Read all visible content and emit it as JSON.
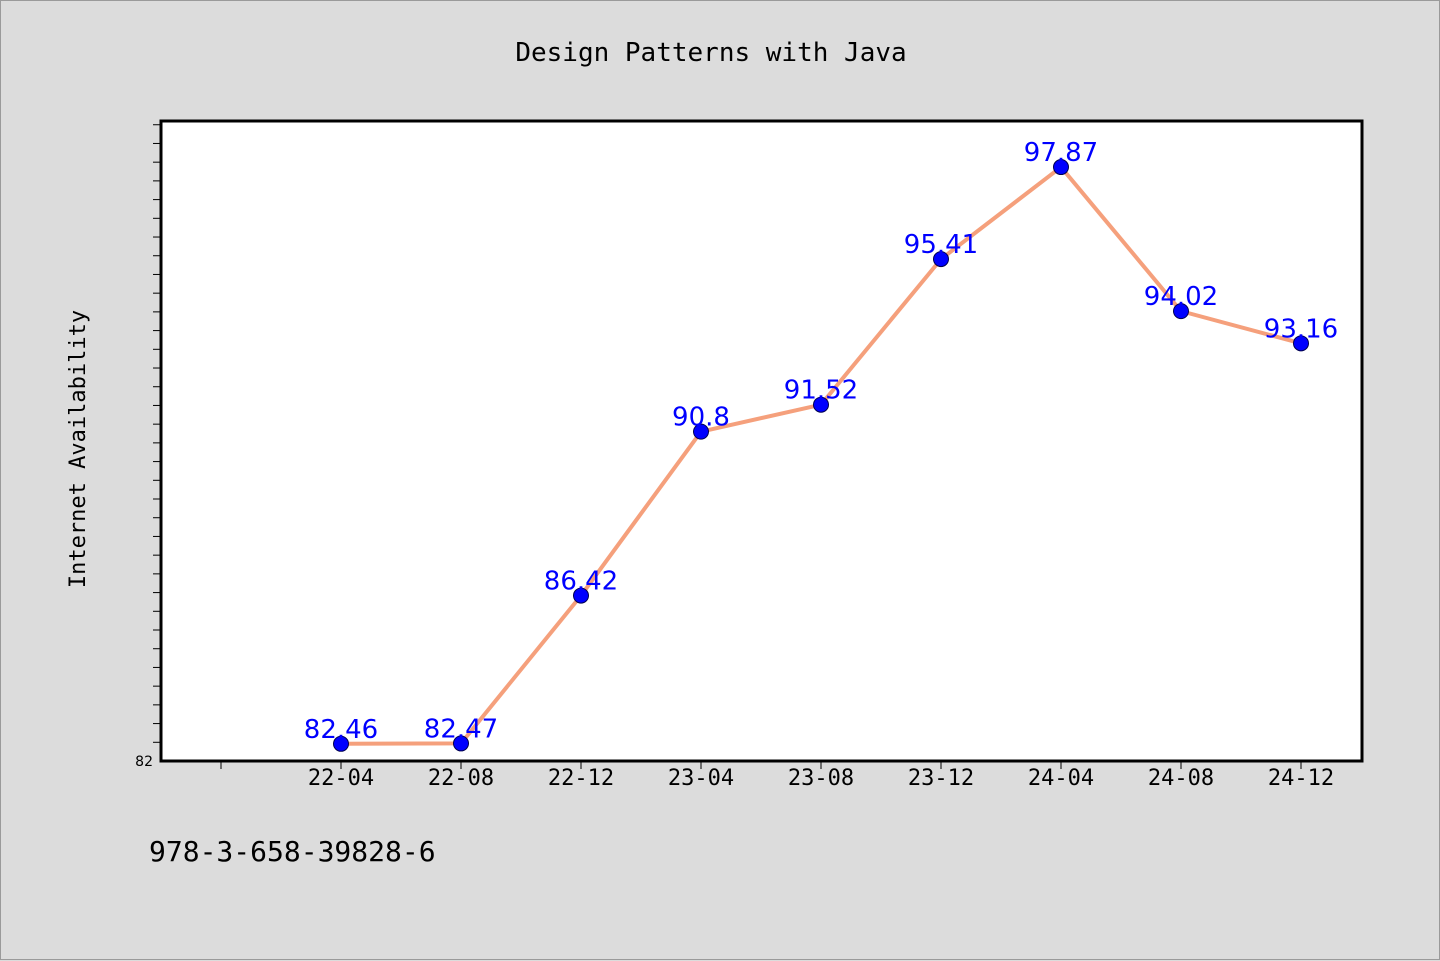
{
  "chart_data": {
    "type": "line",
    "title": "Design Patterns with Java",
    "xlabel": "",
    "ylabel": "Internet Availability",
    "categories": [
      "22-04",
      "22-08",
      "22-12",
      "23-04",
      "23-08",
      "23-12",
      "24-04",
      "24-08",
      "24-12"
    ],
    "series": [
      {
        "values": [
          82.46,
          82.47,
          86.42,
          90.8,
          91.52,
          95.41,
          97.87,
          94.02,
          93.16
        ]
      }
    ],
    "data_labels": [
      "82.46",
      "82.47",
      "86.42",
      "90.8",
      "91.52",
      "95.41",
      "97.87",
      "94.02",
      "93.16"
    ],
    "y_tick_labels": [
      "82"
    ],
    "ylim": [
      82,
      99.1
    ],
    "line_color": "#f5a07c",
    "marker_color": "#0000ff",
    "label_color": "#0000ff",
    "grid": false,
    "legend": "none"
  },
  "footer": {
    "isbn": "978-3-658-39828-6"
  }
}
